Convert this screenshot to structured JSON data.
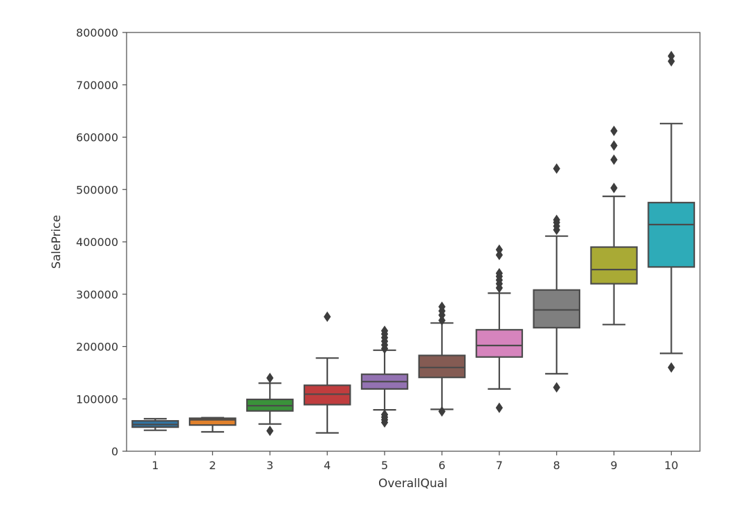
{
  "chart_data": {
    "type": "box",
    "xlabel": "OverallQual",
    "ylabel": "SalePrice",
    "ylim": [
      0,
      800000
    ],
    "yticks": [
      0,
      100000,
      200000,
      300000,
      400000,
      500000,
      600000,
      700000,
      800000
    ],
    "ytick_labels": [
      "0",
      "100000",
      "200000",
      "300000",
      "400000",
      "500000",
      "600000",
      "700000",
      "800000"
    ],
    "grid": false,
    "categories": [
      "1",
      "2",
      "3",
      "4",
      "5",
      "6",
      "7",
      "8",
      "9",
      "10"
    ],
    "boxes": [
      {
        "category": "1",
        "color": "#3274a1",
        "whisker_low": 40000,
        "q1": 46000,
        "median": 51000,
        "q3": 58000,
        "whisker_high": 62000,
        "outliers": []
      },
      {
        "category": "2",
        "color": "#e1812c",
        "whisker_low": 37000,
        "q1": 50000,
        "median": 60000,
        "q3": 63000,
        "whisker_high": 64000,
        "outliers": []
      },
      {
        "category": "3",
        "color": "#3a923a",
        "whisker_low": 52000,
        "q1": 77000,
        "median": 87000,
        "q3": 99000,
        "whisker_high": 130000,
        "outliers": [
          39000,
          140000
        ]
      },
      {
        "category": "4",
        "color": "#c03d3e",
        "whisker_low": 35000,
        "q1": 89000,
        "median": 109000,
        "q3": 126000,
        "whisker_high": 178000,
        "outliers": [
          257000
        ]
      },
      {
        "category": "5",
        "color": "#9372b2",
        "whisker_low": 79000,
        "q1": 119000,
        "median": 133000,
        "q3": 147000,
        "whisker_high": 193000,
        "outliers": [
          55000,
          60000,
          65000,
          70000,
          196000,
          203000,
          210000,
          217000,
          224000,
          230000
        ]
      },
      {
        "category": "6",
        "color": "#845b53",
        "whisker_low": 80000,
        "q1": 141000,
        "median": 160000,
        "q3": 183000,
        "whisker_high": 245000,
        "outliers": [
          76000,
          250000,
          260000,
          268000,
          276000
        ]
      },
      {
        "category": "7",
        "color": "#d684bd",
        "whisker_low": 119000,
        "q1": 180000,
        "median": 202000,
        "q3": 232000,
        "whisker_high": 302000,
        "outliers": [
          83000,
          312000,
          320000,
          327000,
          334000,
          340000,
          375000,
          385000
        ]
      },
      {
        "category": "8",
        "color": "#7f7f7f",
        "whisker_low": 148000,
        "q1": 236000,
        "median": 270000,
        "q3": 308000,
        "whisker_high": 411000,
        "outliers": [
          122000,
          423000,
          430000,
          437000,
          442000,
          540000
        ]
      },
      {
        "category": "9",
        "color": "#a9aa35",
        "whisker_low": 242000,
        "q1": 320000,
        "median": 347000,
        "q3": 390000,
        "whisker_high": 487000,
        "outliers": [
          503000,
          557000,
          584000,
          612000
        ]
      },
      {
        "category": "10",
        "color": "#2eabb8",
        "whisker_low": 187000,
        "q1": 352000,
        "median": 433000,
        "q3": 475000,
        "whisker_high": 626000,
        "outliers": [
          160000,
          745000,
          755000
        ]
      }
    ]
  }
}
